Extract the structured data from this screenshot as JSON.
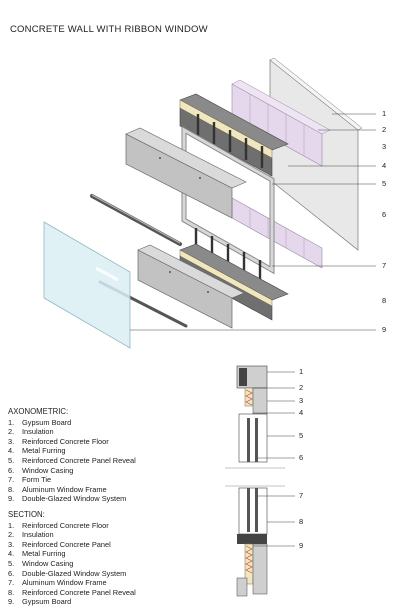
{
  "title": "CONCRETE WALL WITH RIBBON WINDOW",
  "axo_callouts": [
    "1",
    "2",
    "3",
    "4",
    "5",
    "6",
    "7",
    "8",
    "9"
  ],
  "section_callouts": [
    "1",
    "2",
    "3",
    "4",
    "5",
    "6",
    "7",
    "8",
    "9"
  ],
  "axonometric": {
    "heading": "AXONOMETRIC:",
    "items": [
      {
        "n": "1.",
        "text": "Gypsum Board"
      },
      {
        "n": "2.",
        "text": "Insulation"
      },
      {
        "n": "3.",
        "text": "Reinforced Concrete Floor"
      },
      {
        "n": "4.",
        "text": "Metal Furring"
      },
      {
        "n": "5.",
        "text": "Reinforced Concrete Panel Reveal"
      },
      {
        "n": "6.",
        "text": "Window Casing"
      },
      {
        "n": "7.",
        "text": "Form Tie"
      },
      {
        "n": "8.",
        "text": "Aluminum Window Frame"
      },
      {
        "n": "9.",
        "text": "Double-Glazed Window System"
      }
    ]
  },
  "section": {
    "heading": "SECTION:",
    "items": [
      {
        "n": "1.",
        "text": "Reinforced Concrete Floor"
      },
      {
        "n": "2.",
        "text": "Insulation"
      },
      {
        "n": "3.",
        "text": "Reinforced Concrete Panel"
      },
      {
        "n": "4.",
        "text": "Metal Furring"
      },
      {
        "n": "5.",
        "text": "Window Casing"
      },
      {
        "n": "6.",
        "text": "Double-Glazed Window System"
      },
      {
        "n": "7.",
        "text": "Aluminum Window Frame"
      },
      {
        "n": "8.",
        "text": "Reinforced Concrete Panel Reveal"
      },
      {
        "n": "9.",
        "text": "Gypsum Board"
      }
    ]
  }
}
